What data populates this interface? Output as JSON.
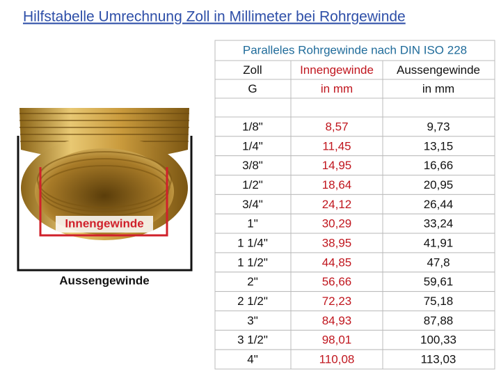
{
  "title": "Hilfstabelle Umrechnung Zoll in Millimeter bei Rohrgewinde",
  "figure": {
    "inner_label": "Innengewinde",
    "outer_label": "Aussengewinde"
  },
  "table": {
    "caption": "Paralleles Rohrgewinde nach DIN ISO 228",
    "header": [
      [
        "Zoll",
        "Innengewinde",
        "Aussengewinde"
      ],
      [
        "G",
        "in mm",
        "in mm"
      ]
    ],
    "rows": [
      [
        "1/8\"",
        "8,57",
        "9,73"
      ],
      [
        "1/4\"",
        "11,45",
        "13,15"
      ],
      [
        "3/8\"",
        "14,95",
        "16,66"
      ],
      [
        "1/2\"",
        "18,64",
        "20,95"
      ],
      [
        "3/4\"",
        "24,12",
        "26,44"
      ],
      [
        "1\"",
        "30,29",
        "33,24"
      ],
      [
        "1 1/4\"",
        "38,95",
        "41,91"
      ],
      [
        "1 1/2\"",
        "44,85",
        "47,8"
      ],
      [
        "2\"",
        "56,66",
        "59,61"
      ],
      [
        "2 1/2\"",
        "72,23",
        "75,18"
      ],
      [
        "3\"",
        "84,93",
        "87,88"
      ],
      [
        "3 1/2\"",
        "98,01",
        "100,33"
      ],
      [
        "4\"",
        "110,08",
        "113,03"
      ]
    ]
  }
}
